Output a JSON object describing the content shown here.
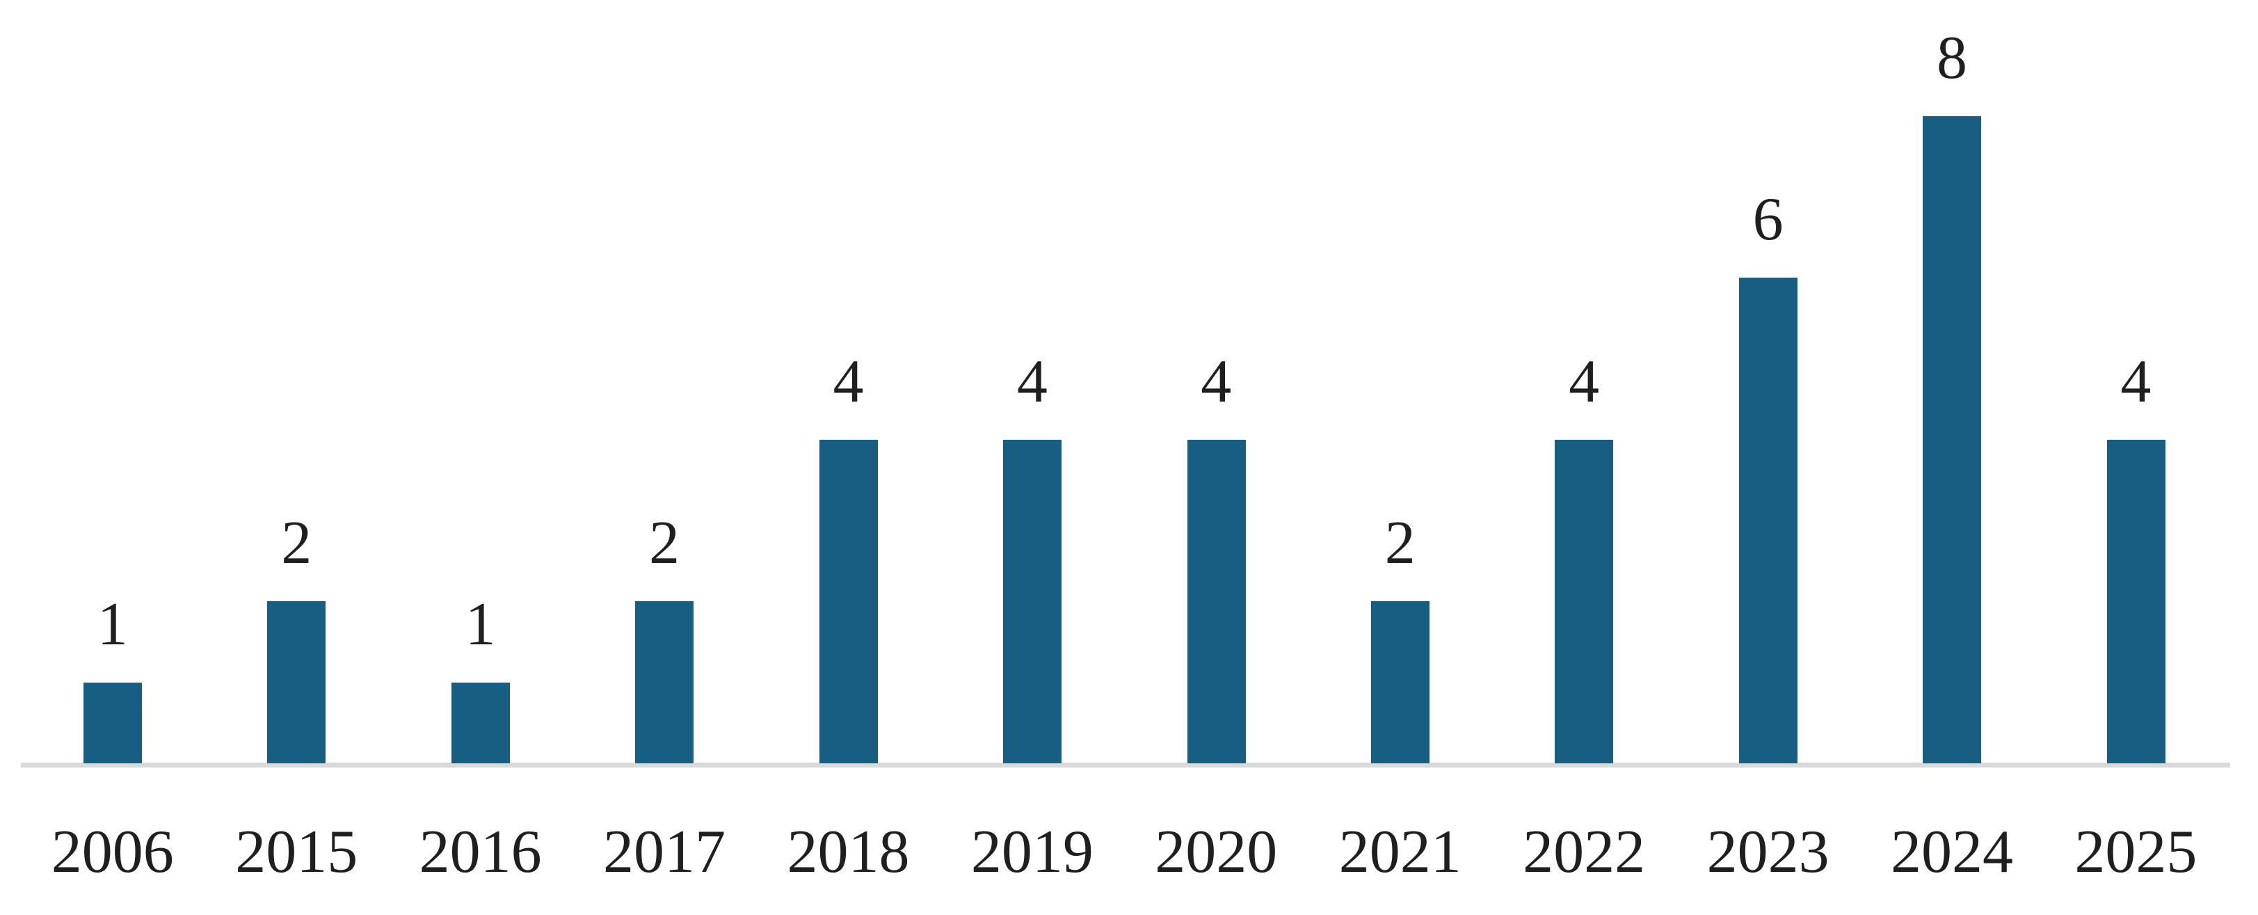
{
  "chart_data": {
    "type": "bar",
    "title": "",
    "xlabel": "",
    "ylabel": "",
    "categories": [
      "2006",
      "2015",
      "2016",
      "2017",
      "2018",
      "2019",
      "2020",
      "2021",
      "2022",
      "2023",
      "2024",
      "2025"
    ],
    "values": [
      1,
      2,
      1,
      2,
      4,
      4,
      4,
      2,
      4,
      6,
      8,
      4
    ],
    "data_labels": [
      "1",
      "2",
      "1",
      "2",
      "4",
      "4",
      "4",
      "2",
      "4",
      "6",
      "8",
      "4"
    ],
    "ylim": [
      0,
      8
    ],
    "grid": false,
    "legend": false,
    "axis_ticks": false,
    "colors": {
      "bar": "#165F82",
      "axis_line": "#D9D9D9",
      "label_text": "#1F1F1F",
      "background": "#FFFFFF"
    }
  }
}
